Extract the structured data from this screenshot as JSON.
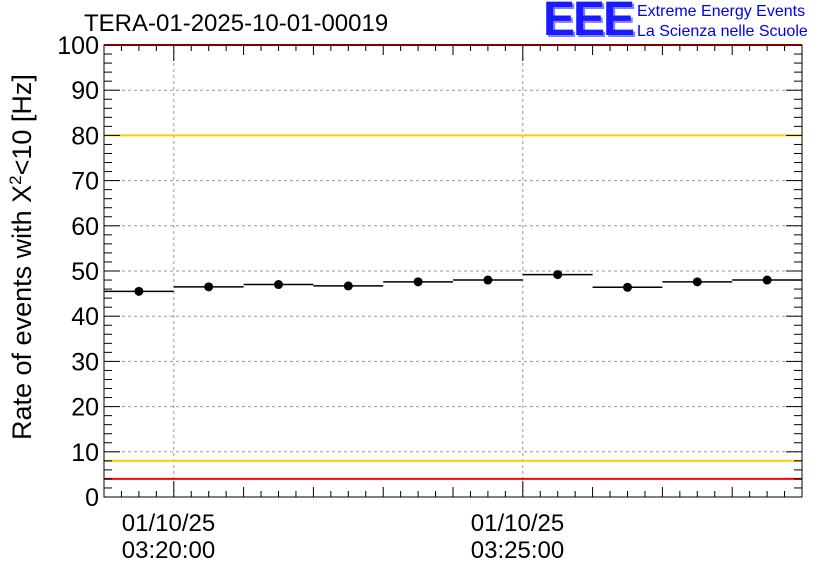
{
  "chart_data": {
    "type": "scatter",
    "title": "TERA-01-2025-10-01-00019",
    "ylabel_prefix": "Rate of events with X",
    "ylabel_sup": "2",
    "ylabel_suffix": "<10 [Hz]",
    "ylim": [
      0,
      100
    ],
    "y_ticks": [
      "0",
      "10",
      "20",
      "30",
      "40",
      "50",
      "60",
      "70",
      "80",
      "90",
      "100"
    ],
    "x_ticks": [
      {
        "date": "01/10/25",
        "time": "03:20:00",
        "t": 60
      },
      {
        "date": "01/10/25",
        "time": "03:25:00",
        "t": 360
      }
    ],
    "xlim": [
      0,
      600
    ],
    "grid": true,
    "points": [
      {
        "x": 30,
        "y": 45.5
      },
      {
        "x": 90,
        "y": 46.5
      },
      {
        "x": 150,
        "y": 47.0
      },
      {
        "x": 210,
        "y": 46.7
      },
      {
        "x": 270,
        "y": 47.6
      },
      {
        "x": 330,
        "y": 48.0
      },
      {
        "x": 390,
        "y": 49.2
      },
      {
        "x": 450,
        "y": 46.4
      },
      {
        "x": 510,
        "y": 47.6
      },
      {
        "x": 570,
        "y": 48.0
      }
    ],
    "bin_half_width": 30,
    "reference_lines": [
      {
        "y": 100,
        "color": "#ff0000"
      },
      {
        "y": 80,
        "color": "#ffcc00"
      },
      {
        "y": 8,
        "color": "#ffcc00"
      },
      {
        "y": 4,
        "color": "#ff0000"
      }
    ]
  },
  "logo": {
    "mark": "EEE",
    "line1": "Extreme Energy Events",
    "line2": "La Scienza nelle Scuole"
  }
}
